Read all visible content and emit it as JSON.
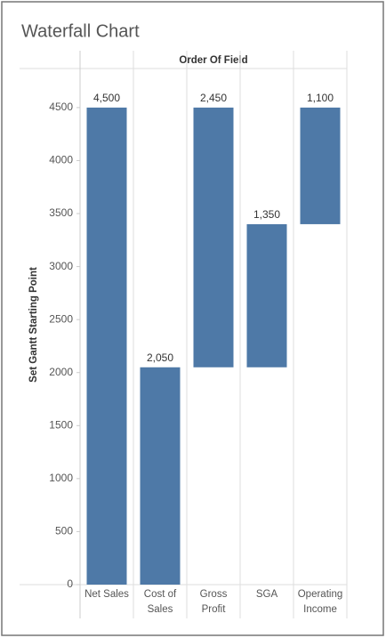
{
  "chart_data": {
    "type": "waterfall",
    "title": "Waterfall Chart",
    "header": "Order Of Field",
    "y_label": "Set Gantt Starting Point",
    "categories": [
      "Net Sales",
      "Cost of Sales",
      "Gross Profit",
      "SGA",
      "Operating Income"
    ],
    "starts": [
      0,
      0,
      2050,
      2050,
      3400
    ],
    "values": [
      4500,
      2050,
      2450,
      1350,
      1100
    ],
    "value_labels": [
      "4,500",
      "2,050",
      "2,450",
      "1,350",
      "1,100"
    ],
    "color": "#4e79a7",
    "ylim": [
      0,
      4860
    ],
    "yticks": [
      0,
      500,
      1000,
      1500,
      2000,
      2500,
      3000,
      3500,
      4000,
      4500
    ]
  }
}
